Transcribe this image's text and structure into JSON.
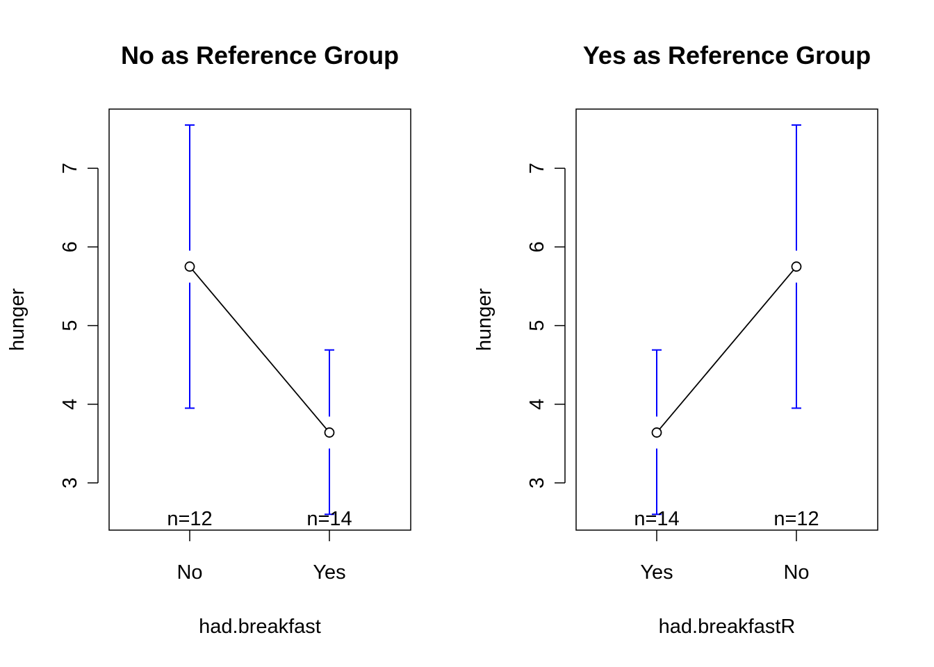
{
  "chart_data": [
    {
      "type": "line",
      "title": "No as Reference Group",
      "xlabel": "had.breakfast",
      "ylabel": "hunger",
      "categories": [
        "No",
        "Yes"
      ],
      "means": [
        5.75,
        3.64
      ],
      "ci_lower": [
        3.95,
        2.6
      ],
      "ci_upper": [
        7.55,
        4.69
      ],
      "n_labels": [
        "n=12",
        "n=14"
      ],
      "y_ticks": [
        "3",
        "4",
        "5",
        "6",
        "7"
      ],
      "ylim": [
        2.42,
        7.76
      ],
      "grid": false,
      "errorbar_color": "#0000ff",
      "line_color": "#000000"
    },
    {
      "type": "line",
      "title": "Yes as Reference Group",
      "xlabel": "had.breakfastR",
      "ylabel": "hunger",
      "categories": [
        "Yes",
        "No"
      ],
      "means": [
        3.64,
        5.75
      ],
      "ci_lower": [
        2.6,
        3.95
      ],
      "ci_upper": [
        4.69,
        7.55
      ],
      "n_labels": [
        "n=14",
        "n=12"
      ],
      "y_ticks": [
        "3",
        "4",
        "5",
        "6",
        "7"
      ],
      "ylim": [
        2.42,
        7.76
      ],
      "grid": false,
      "errorbar_color": "#0000ff",
      "line_color": "#000000"
    }
  ]
}
